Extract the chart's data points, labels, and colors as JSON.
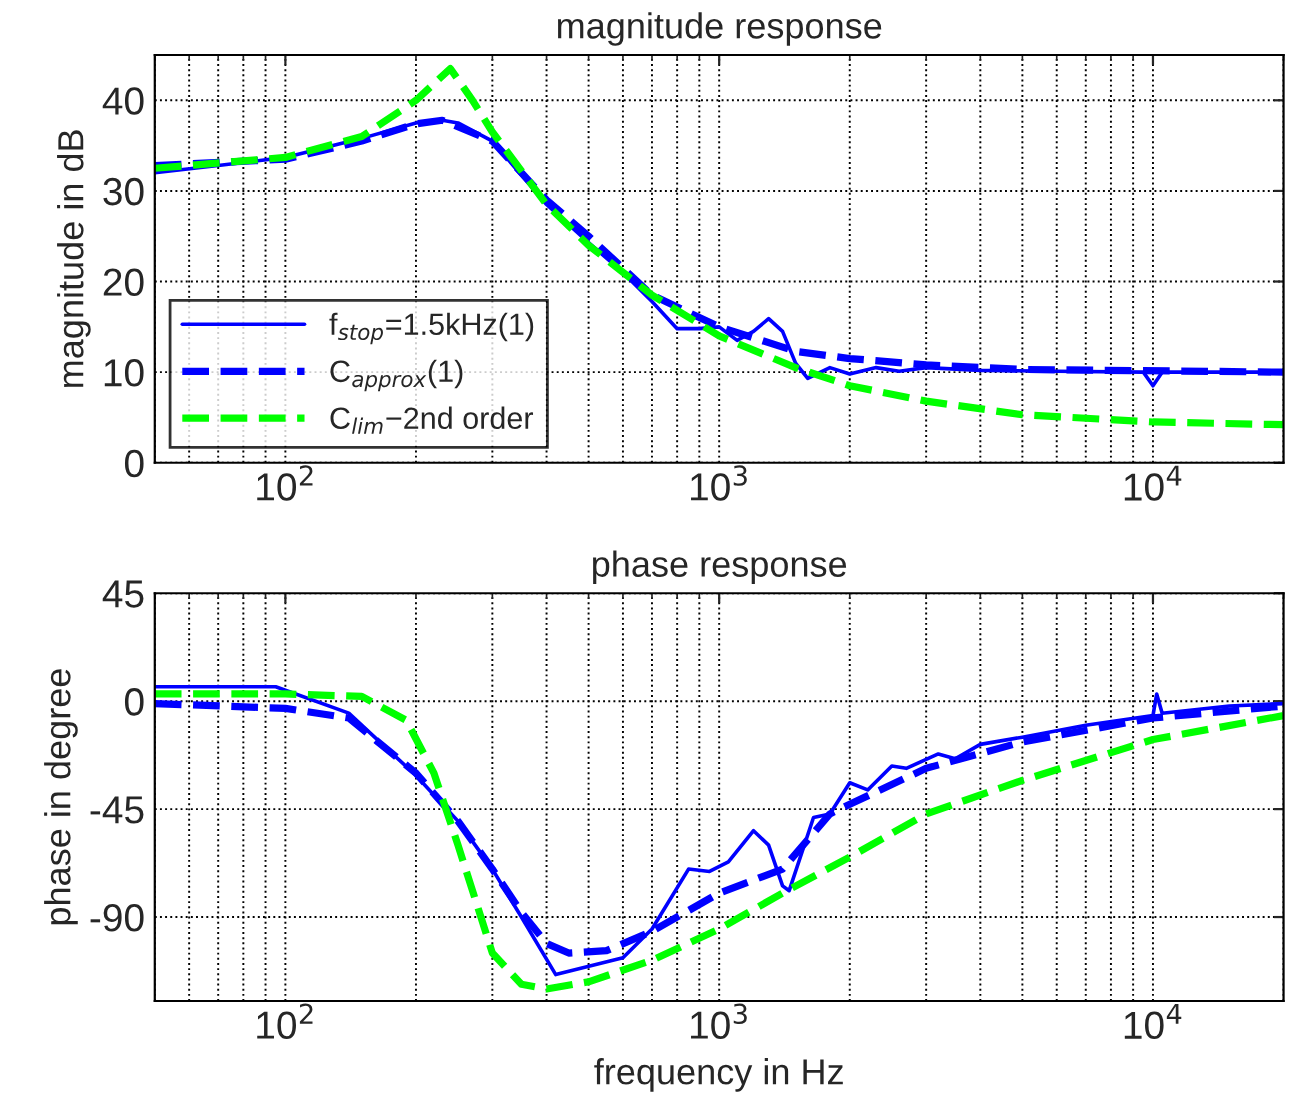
{
  "chart_data": [
    {
      "type": "line",
      "title": "magnitude response",
      "ylabel": "magnitude in dB",
      "log": "x",
      "grid": true,
      "legend": "bottom left",
      "xlim": [
        50,
        20000
      ],
      "xticks": [
        {
          "value": 100,
          "label": "10$^{2}$"
        },
        {
          "value": 1000,
          "label": "10$^{3}$"
        },
        {
          "value": 10000,
          "label": "10$^{4}$"
        }
      ],
      "ylim": [
        0,
        45
      ],
      "yticks": [
        0,
        10,
        20,
        30,
        40
      ],
      "series": [
        {
          "name": "f$_{stop}$=1.5kHz(1)",
          "color": "#0000ff",
          "line_style": "solid",
          "x": [
            50,
            70,
            100,
            150,
            200,
            230,
            250,
            300,
            400,
            500,
            600,
            700,
            800,
            900,
            1000,
            1100,
            1200,
            1300,
            1400,
            1500,
            1600,
            1800,
            2000,
            2300,
            2600,
            3000,
            4000,
            6000,
            9500,
            10000,
            10500,
            20000
          ],
          "values": [
            32,
            32.8,
            33.7,
            35.8,
            37.5,
            37.8,
            37.5,
            35.5,
            28.5,
            24.3,
            21,
            17.8,
            14.8,
            14.8,
            15,
            13.5,
            14.5,
            15.9,
            14.5,
            11,
            9.3,
            10.5,
            9.8,
            10.5,
            10.1,
            10.5,
            10.2,
            10.1,
            10,
            8.5,
            10,
            10
          ]
        },
        {
          "name": "C$_{approx}$(1)",
          "color": "#0000ff",
          "line_style": "dashed",
          "x": [
            50,
            100,
            150,
            200,
            230,
            300,
            400,
            500,
            700,
            1000,
            1500,
            2000,
            3000,
            5000,
            20000
          ],
          "values": [
            32.8,
            33.5,
            35.5,
            37.4,
            37.8,
            35.5,
            29,
            25,
            18.5,
            15,
            12.3,
            11.5,
            10.8,
            10.3,
            10
          ]
        },
        {
          "name": "C$_{lim}$−2nd order",
          "color": "#00ff00",
          "line_style": "dashed",
          "x": [
            50,
            100,
            150,
            200,
            240,
            270,
            300,
            400,
            500,
            700,
            1000,
            1500,
            2000,
            3000,
            5000,
            10000,
            20000
          ],
          "values": [
            32.5,
            33.7,
            36,
            40,
            43.5,
            40,
            36.5,
            28.5,
            24,
            18.5,
            14,
            10.5,
            8.5,
            6.8,
            5.3,
            4.5,
            4.2
          ]
        }
      ]
    },
    {
      "type": "line",
      "title": "phase response",
      "xlabel": "frequency in Hz",
      "ylabel": "phase in degree",
      "log": "x",
      "grid": true,
      "xlim": [
        50,
        20000
      ],
      "xticks": [
        {
          "value": 100,
          "label": "10$^{2}$"
        },
        {
          "value": 1000,
          "label": "10$^{3}$"
        },
        {
          "value": 10000,
          "label": "10$^{4}$"
        }
      ],
      "ylim": [
        -125,
        45
      ],
      "yticks": [
        -90,
        -45,
        0,
        45
      ],
      "series": [
        {
          "color": "#0000ff",
          "line_style": "solid",
          "x": [
            50,
            95,
            140,
            200,
            250,
            300,
            350,
            420,
            600,
            700,
            850,
            950,
            1050,
            1200,
            1300,
            1400,
            1450,
            1650,
            1800,
            2000,
            2200,
            2500,
            2700,
            3200,
            3500,
            4000,
            5000,
            7000,
            10000,
            10200,
            10500,
            15000,
            20000
          ],
          "values": [
            6,
            6,
            -5,
            -31,
            -50,
            -70,
            -90,
            -114,
            -107,
            -95,
            -70,
            -71,
            -67,
            -54,
            -60,
            -77,
            -79,
            -48.5,
            -47,
            -34,
            -37,
            -27,
            -28,
            -22,
            -24,
            -18,
            -15,
            -10,
            -6,
            3,
            -5,
            -2,
            -1
          ]
        },
        {
          "color": "#0000ff",
          "line_style": "dashed",
          "x": [
            50,
            100,
            140,
            200,
            250,
            300,
            350,
            400,
            450,
            550,
            700,
            1000,
            1400,
            1800,
            2000,
            3000,
            5000,
            10000,
            20000
          ],
          "values": [
            -1,
            -3,
            -7,
            -30,
            -50,
            -70,
            -88,
            -101,
            -105,
            -104,
            -96,
            -80,
            -70,
            -47,
            -43,
            -28,
            -17,
            -7,
            -2
          ]
        },
        {
          "color": "#00ff00",
          "line_style": "dashed",
          "x": [
            50,
            100,
            150,
            190,
            220,
            250,
            300,
            350,
            400,
            500,
            700,
            1000,
            1400,
            2000,
            3000,
            5000,
            10000,
            20000
          ],
          "values": [
            3,
            3,
            2,
            -8,
            -30,
            -60,
            -105,
            -118,
            -120,
            -117,
            -108,
            -95,
            -80,
            -65,
            -47,
            -33,
            -16,
            -6
          ]
        }
      ]
    }
  ]
}
